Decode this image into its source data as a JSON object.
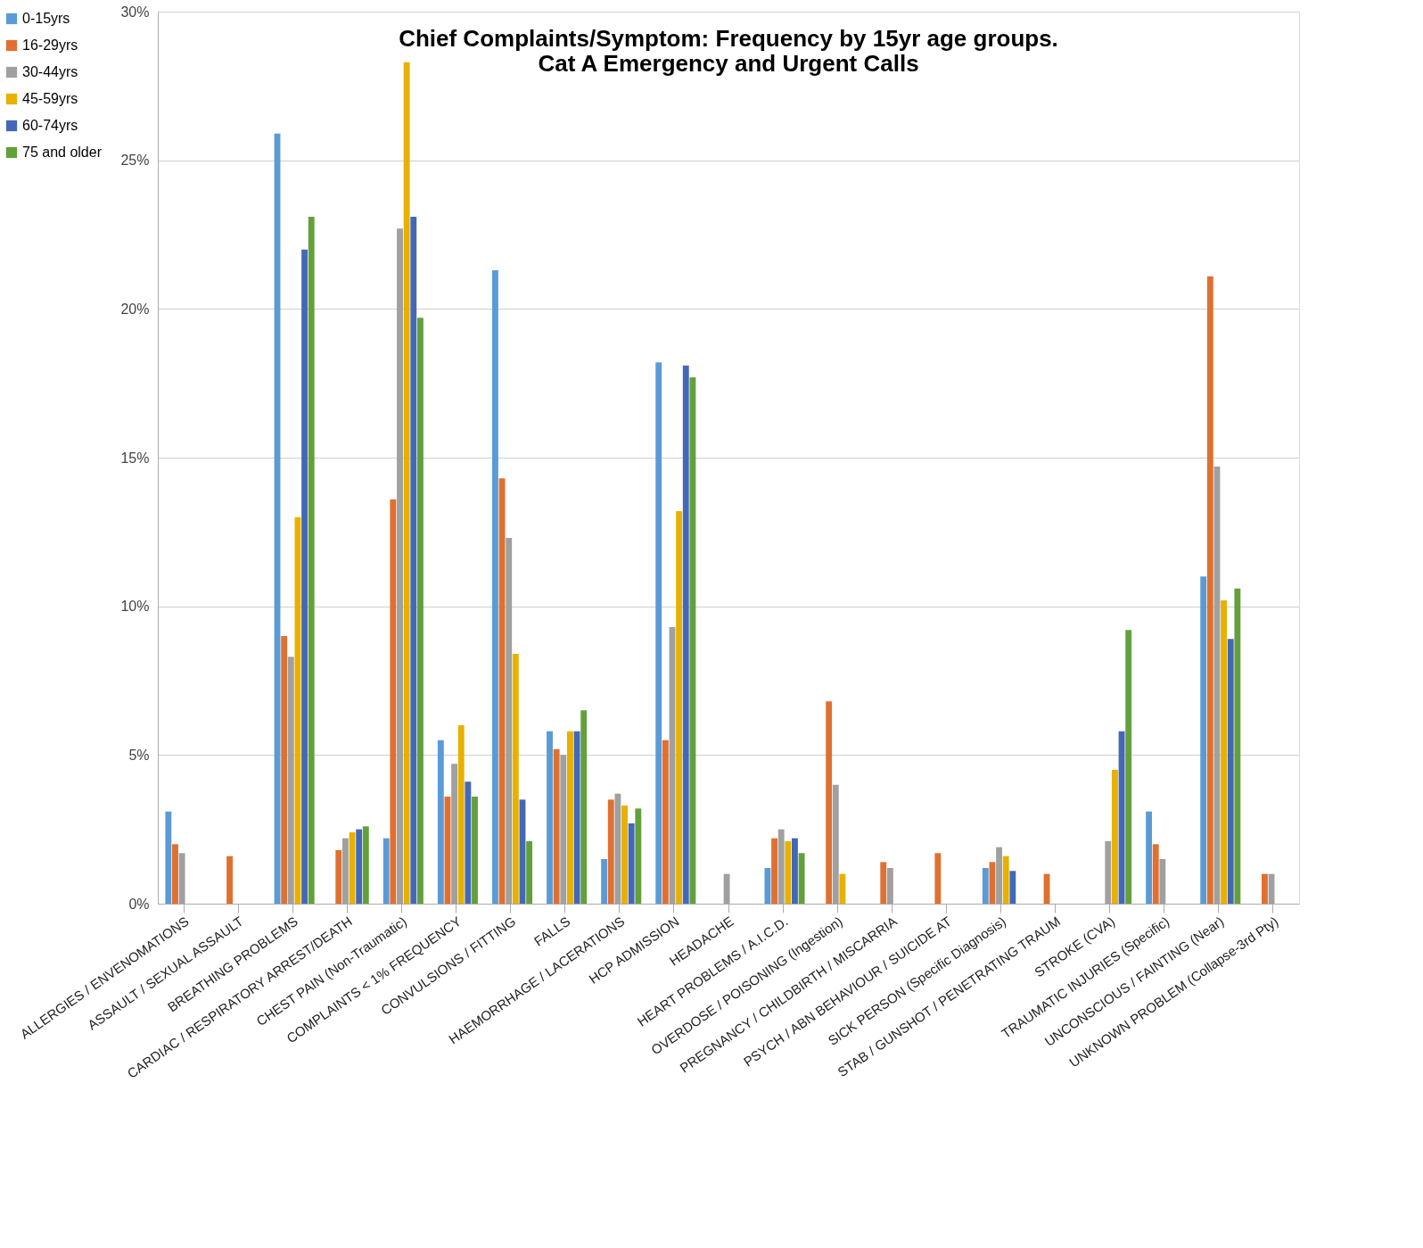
{
  "chart_data": {
    "type": "bar",
    "title": [
      "Chief Complaints/Symptom: Frequency by 15yr age groups.",
      "Cat A Emergency and Urgent Calls"
    ],
    "categories": [
      "ALLERGIES / ENVENOMATIONS",
      "ASSAULT / SEXUAL ASSAULT",
      "BREATHING PROBLEMS",
      "CARDIAC / RESPIRATORY ARREST/DEATH",
      "CHEST PAIN (Non-Traumatic)",
      "COMPLAINTS < 1% FREQUENCY",
      "CONVULSIONS / FITTING",
      "FALLS",
      "HAEMORRHAGE / LACERATIONS",
      "HCP ADMISSION",
      "HEADACHE",
      "HEART PROBLEMS / A.I.C.D.",
      "OVERDOSE / POISONING (Ingestion)",
      "PREGNANCY / CHILDBIRTH / MISCARRIA",
      "PSYCH / ABN BEHAVIOUR / SUICIDE AT",
      "SICK PERSON (Specific Diagnosis)",
      "STAB / GUNSHOT / PENETRATING TRAUM",
      "STROKE (CVA)",
      "TRAUMATIC INJURIES (Specific)",
      "UNCONSCIOUS / FAINTING (Near)",
      "UNKNOWN PROBLEM (Collapse-3rd Pty)"
    ],
    "series": [
      {
        "name": "0-15yrs",
        "color": "#5b9bd5",
        "values": [
          3.1,
          null,
          25.9,
          null,
          2.2,
          5.5,
          21.3,
          5.8,
          1.5,
          18.2,
          null,
          1.2,
          null,
          null,
          null,
          1.2,
          null,
          null,
          3.1,
          11.0,
          null
        ]
      },
      {
        "name": "16-29yrs",
        "color": "#e07030",
        "values": [
          2.0,
          1.6,
          9.0,
          1.8,
          13.6,
          3.6,
          14.3,
          5.2,
          3.5,
          5.5,
          null,
          2.2,
          6.8,
          1.4,
          1.7,
          1.4,
          1.0,
          null,
          2.0,
          21.1,
          1.0
        ]
      },
      {
        "name": "30-44yrs",
        "color": "#a0a0a0",
        "values": [
          1.7,
          null,
          8.3,
          2.2,
          22.7,
          4.7,
          12.3,
          5.0,
          3.7,
          9.3,
          1.0,
          2.5,
          4.0,
          1.2,
          null,
          1.9,
          null,
          2.1,
          1.5,
          14.7,
          1.0
        ]
      },
      {
        "name": "45-59yrs",
        "color": "#e8b000",
        "values": [
          null,
          null,
          13.0,
          2.4,
          28.3,
          6.0,
          8.4,
          5.8,
          3.3,
          13.2,
          null,
          2.1,
          1.0,
          null,
          null,
          1.6,
          null,
          4.5,
          null,
          10.2,
          null
        ]
      },
      {
        "name": "60-74yrs",
        "color": "#4468b8",
        "values": [
          null,
          null,
          22.0,
          2.5,
          23.1,
          4.1,
          3.5,
          5.8,
          2.7,
          18.1,
          null,
          2.2,
          null,
          null,
          null,
          1.1,
          null,
          5.8,
          null,
          8.9,
          null
        ]
      },
      {
        "name": "75 and older",
        "color": "#62a03c",
        "values": [
          null,
          null,
          23.1,
          2.6,
          19.7,
          3.6,
          2.1,
          6.5,
          3.2,
          17.7,
          null,
          1.7,
          null,
          null,
          null,
          null,
          null,
          9.2,
          null,
          10.6,
          null
        ]
      }
    ],
    "ylim": [
      0,
      30
    ],
    "yticks": [
      {
        "value": 0,
        "label": "0%"
      },
      {
        "value": 5,
        "label": "5%"
      },
      {
        "value": 10,
        "label": "10%"
      },
      {
        "value": 15,
        "label": "15%"
      },
      {
        "value": 20,
        "label": "20%"
      },
      {
        "value": 25,
        "label": "25%"
      },
      {
        "value": 30,
        "label": "30%"
      }
    ],
    "grid": "y",
    "legend": "left"
  }
}
